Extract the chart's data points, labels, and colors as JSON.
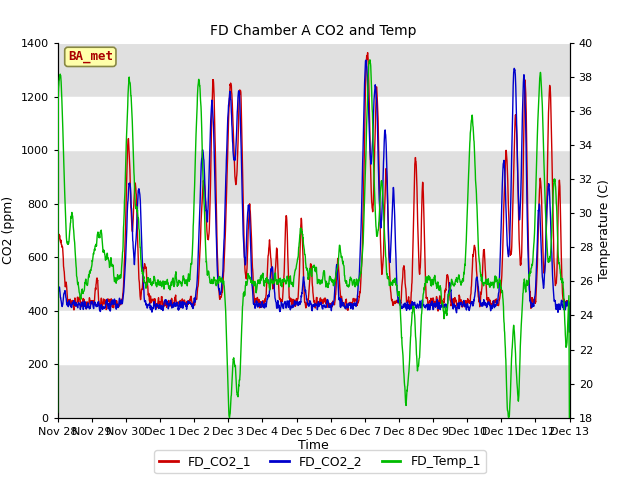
{
  "title": "FD Chamber A CO2 and Temp",
  "xlabel": "Time",
  "ylabel_left": "CO2 (ppm)",
  "ylabel_right": "Temperature (C)",
  "ylim_left": [
    0,
    1400
  ],
  "ylim_right": [
    18,
    40
  ],
  "yticks_left": [
    0,
    200,
    400,
    600,
    800,
    1000,
    1200,
    1400
  ],
  "yticks_right": [
    18,
    20,
    22,
    24,
    26,
    28,
    30,
    32,
    34,
    36,
    38,
    40
  ],
  "bg_color": "#ffffff",
  "plot_bg_color": "#e0e0e0",
  "white_band_ranges": [
    [
      200,
      400
    ],
    [
      600,
      800
    ],
    [
      1000,
      1200
    ]
  ],
  "line_colors": {
    "co2_1": "#cc0000",
    "co2_2": "#0000cc",
    "temp": "#00bb00"
  },
  "line_width": 1.0,
  "legend_labels": [
    "FD_CO2_1",
    "FD_CO2_2",
    "FD_Temp_1"
  ],
  "annotation_text": "BA_met",
  "annotation_fg": "#aa0000",
  "annotation_bg": "#ffffaa",
  "annotation_border": "#888844",
  "xtick_labels": [
    "Nov 28",
    "Nov 29",
    "Nov 30",
    "Dec 1",
    "Dec 2",
    "Dec 3",
    "Dec 4",
    "Dec 5",
    "Dec 6",
    "Dec 7",
    "Dec 8",
    "Dec 9",
    "Dec 10",
    "Dec 11",
    "Dec 12",
    "Dec 13"
  ],
  "num_days": 15,
  "pts_per_day": 144
}
